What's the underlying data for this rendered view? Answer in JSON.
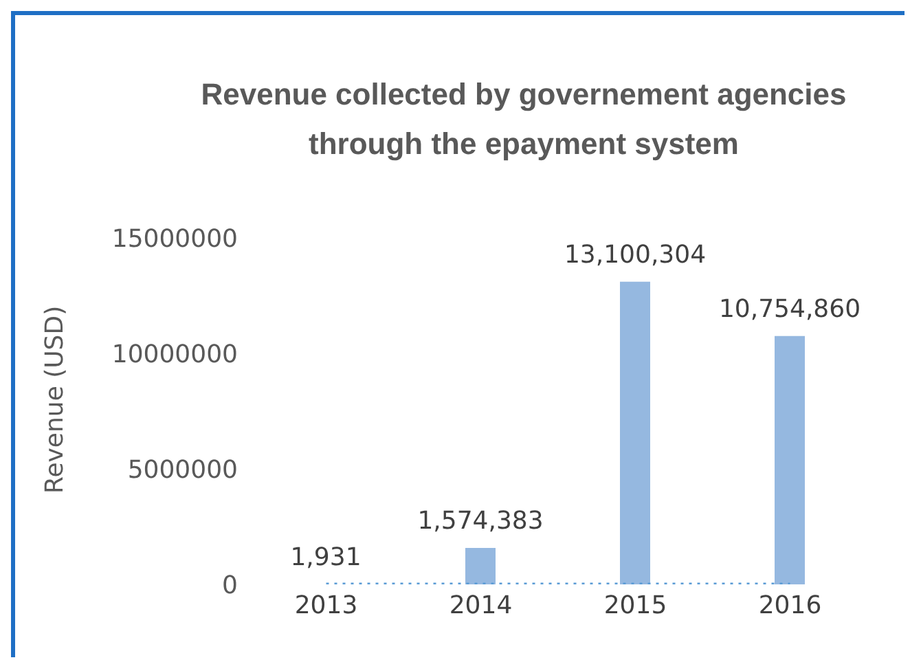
{
  "chart_data": {
    "type": "bar",
    "title": "Revenue collected by governement agencies through the epayment system",
    "ylabel": "Revenue (USD)",
    "categories": [
      "2013",
      "2014",
      "2015",
      "2016"
    ],
    "series": [
      {
        "color": "#95b8e0",
        "values": [
          1931,
          1574383,
          13100304,
          10754860
        ],
        "value_labels": [
          "1,931",
          "1,574,383",
          "13,100,304",
          "10,754,860"
        ]
      },
      {
        "type": "line",
        "color": "#5b9bd5",
        "values": [
          0,
          0,
          0,
          0
        ],
        "line_style": "dotted",
        "marker": "none"
      }
    ],
    "ylim": [
      0,
      15000000
    ],
    "yticks": [
      0,
      5000000,
      10000000,
      15000000
    ],
    "legend": false
  }
}
